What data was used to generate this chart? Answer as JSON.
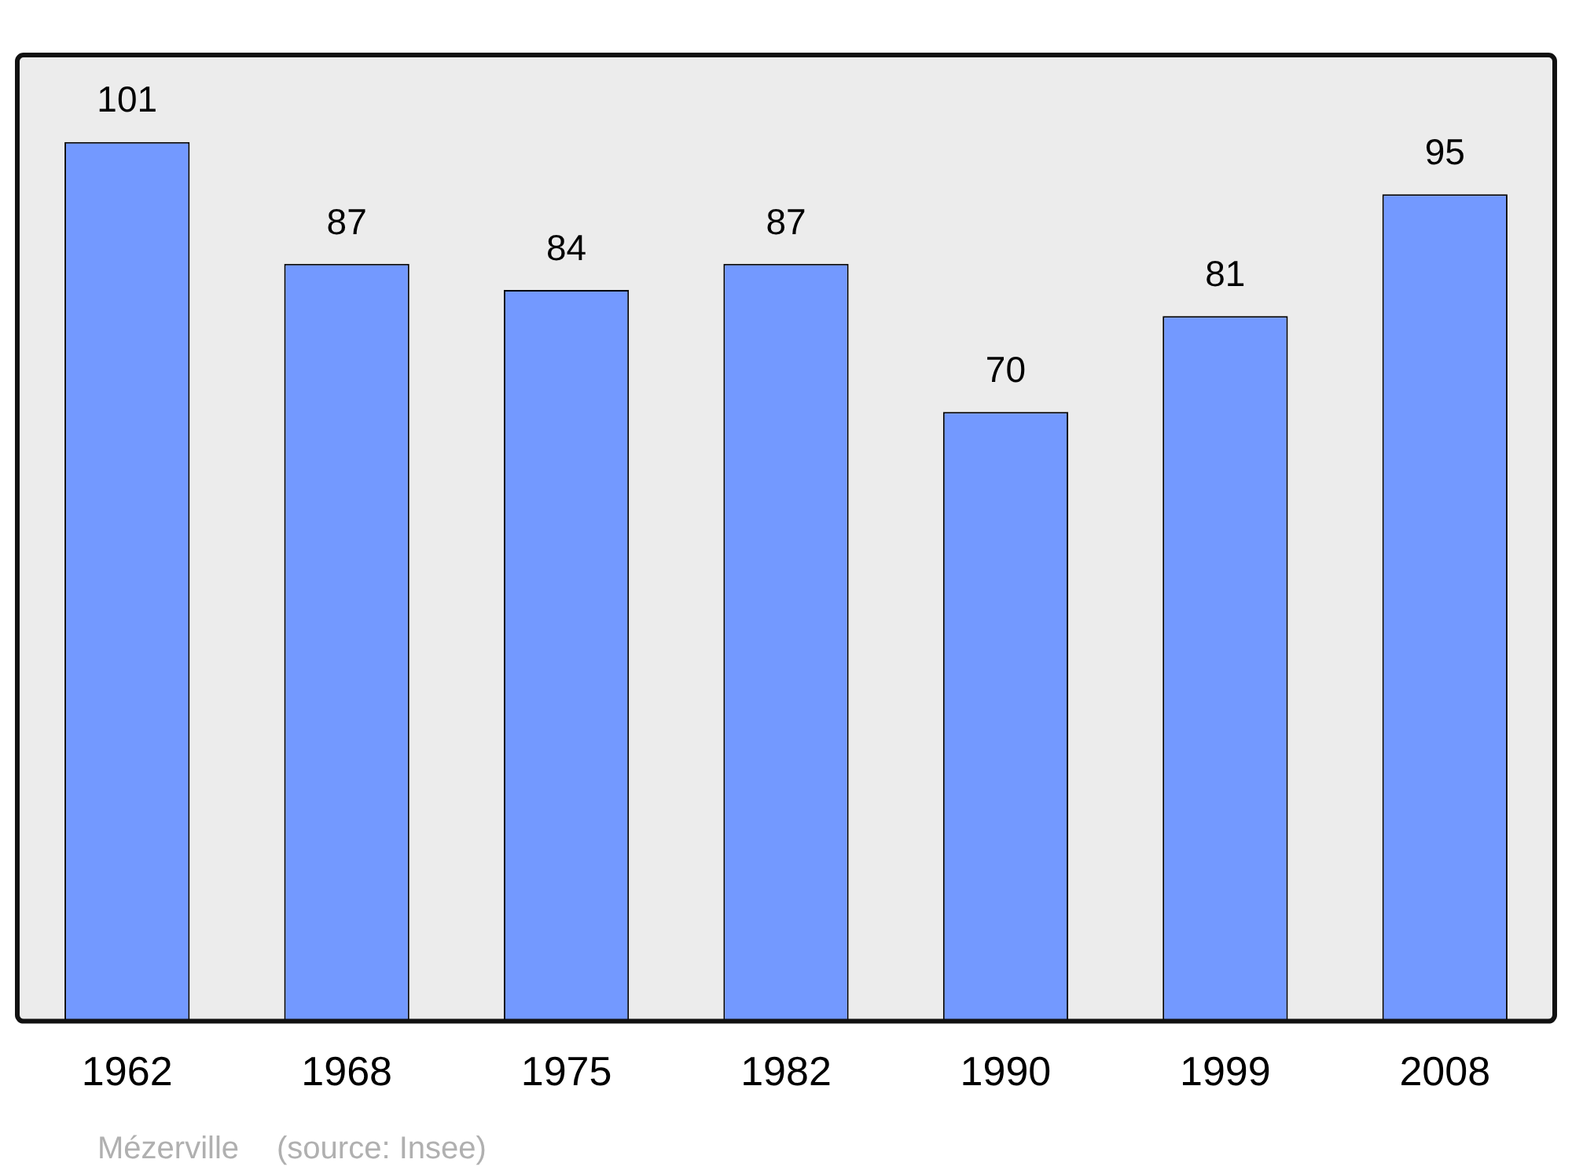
{
  "chart_data": {
    "type": "bar",
    "categories": [
      "1962",
      "1968",
      "1975",
      "1982",
      "1990",
      "1999",
      "2008"
    ],
    "values": [
      101,
      87,
      84,
      87,
      70,
      81,
      95
    ],
    "color": "#7399ff",
    "ylim": [
      0,
      111
    ],
    "data_labels": true,
    "legend": false,
    "tick_labels": "x",
    "annotations": [
      "Mézerville",
      "(source: Insee)"
    ]
  }
}
